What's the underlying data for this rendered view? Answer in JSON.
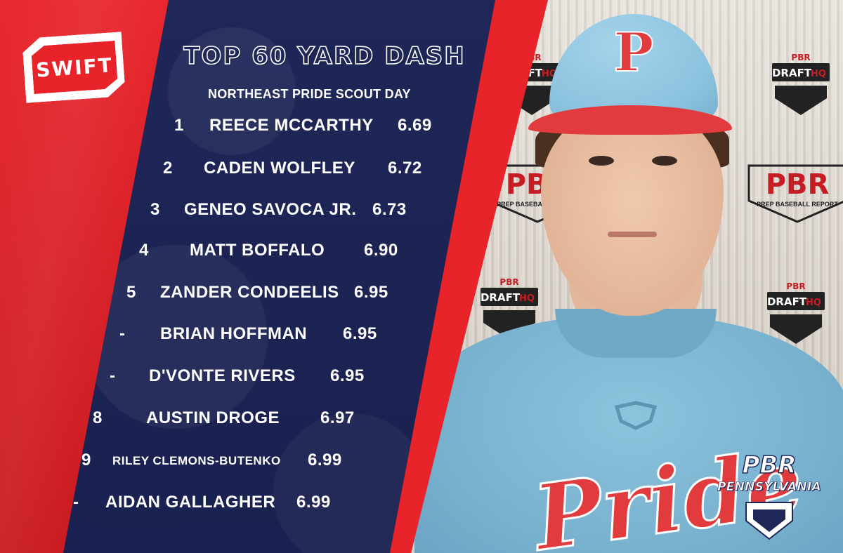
{
  "sponsor": {
    "label": "SWIFT"
  },
  "header": {
    "title": "TOP 60 YARD DASH",
    "subtitle": "NORTHEAST PRIDE SCOUT DAY"
  },
  "rankings": [
    {
      "rank": "1",
      "name": "REECE MCCARTHY",
      "time": "6.69"
    },
    {
      "rank": "2",
      "name": "CADEN WOLFLEY",
      "time": "6.72"
    },
    {
      "rank": "3",
      "name": "GENEO SAVOCA JR.",
      "time": "6.73"
    },
    {
      "rank": "4",
      "name": "MATT BOFFALO",
      "time": "6.90"
    },
    {
      "rank": "5",
      "name": "ZANDER CONDEELIS",
      "time": "6.95"
    },
    {
      "rank": "-",
      "name": "BRIAN HOFFMAN",
      "time": "6.95"
    },
    {
      "rank": "-",
      "name": "D'VONTE RIVERS",
      "time": "6.95"
    },
    {
      "rank": "8",
      "name": "AUSTIN DROGE",
      "time": "6.97"
    },
    {
      "rank": "9",
      "name": "RILEY CLEMONS-BUTENKO",
      "time": "6.99"
    },
    {
      "rank": "-",
      "name": "AIDAN GALLAGHER",
      "time": "6.99"
    }
  ],
  "photo": {
    "cap_letter": "P",
    "shirt_text": "Pride",
    "backdrop": {
      "draft_brand": "PBR",
      "draft_text": "DRAFT",
      "draft_hq": "HQ",
      "pbr_big": "PBR",
      "pbr_sub": "PREP BASEBALL REPORT"
    }
  },
  "branding": {
    "pbr": "PBR",
    "region": "PENNSYLVANIA"
  },
  "colors": {
    "red": "#e8242a",
    "navy": "#1f2758",
    "white": "#ffffff",
    "light_blue": "#8ac2de"
  }
}
